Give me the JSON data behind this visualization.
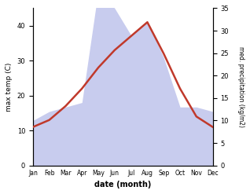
{
  "months": [
    "Jan",
    "Feb",
    "Mar",
    "Apr",
    "May",
    "Jun",
    "Jul",
    "Aug",
    "Sep",
    "Oct",
    "Nov",
    "Dec"
  ],
  "temperature": [
    11,
    13,
    17,
    22,
    28,
    33,
    37,
    41,
    32,
    22,
    14,
    11
  ],
  "precipitation": [
    10,
    12,
    13,
    14,
    39,
    35,
    29,
    32,
    24,
    13,
    13,
    12
  ],
  "temp_color": "#c0392b",
  "precip_fill_color": "#c8ccee",
  "temp_ylim": [
    0,
    45
  ],
  "precip_ylim": [
    0,
    35
  ],
  "temp_yticks": [
    0,
    10,
    20,
    30,
    40
  ],
  "precip_yticks": [
    0,
    5,
    10,
    15,
    20,
    25,
    30,
    35
  ],
  "xlabel": "date (month)",
  "ylabel_left": "max temp (C)",
  "ylabel_right": "med. precipitation (kg/m2)"
}
